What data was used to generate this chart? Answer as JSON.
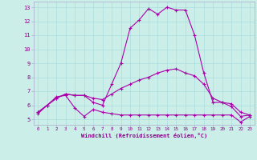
{
  "xlabel": "Windchill (Refroidissement éolien,°C)",
  "background_color": "#cceee8",
  "line_color": "#aa00aa",
  "grid_color": "#aadddd",
  "border_color": "#aaaacc",
  "xlim": [
    -0.5,
    23.5
  ],
  "ylim": [
    4.6,
    13.4
  ],
  "xticks": [
    0,
    1,
    2,
    3,
    4,
    5,
    6,
    7,
    8,
    9,
    10,
    11,
    12,
    13,
    14,
    15,
    16,
    17,
    18,
    19,
    20,
    21,
    22,
    23
  ],
  "yticks": [
    5,
    6,
    7,
    8,
    9,
    10,
    11,
    12,
    13
  ],
  "line1_x": [
    0,
    1,
    2,
    3,
    4,
    5,
    6,
    7,
    8,
    9,
    10,
    11,
    12,
    13,
    14,
    15,
    16,
    17,
    18,
    19,
    20,
    21,
    22,
    23
  ],
  "line1_y": [
    5.5,
    6.0,
    6.5,
    6.8,
    6.7,
    6.7,
    6.5,
    6.4,
    6.8,
    7.2,
    7.5,
    7.8,
    8.0,
    8.3,
    8.5,
    8.6,
    8.3,
    8.1,
    7.5,
    6.5,
    6.2,
    6.1,
    5.5,
    5.3
  ],
  "line2_x": [
    0,
    1,
    2,
    3,
    4,
    5,
    6,
    7,
    8,
    9,
    10,
    11,
    12,
    13,
    14,
    15,
    16,
    17,
    18,
    19,
    20,
    21,
    22,
    23
  ],
  "line2_y": [
    5.4,
    6.0,
    6.6,
    6.7,
    5.8,
    5.2,
    5.7,
    5.5,
    5.4,
    5.3,
    5.3,
    5.3,
    5.3,
    5.3,
    5.3,
    5.3,
    5.3,
    5.3,
    5.3,
    5.3,
    5.3,
    5.3,
    4.8,
    5.2
  ],
  "line3_x": [
    0,
    1,
    2,
    3,
    4,
    5,
    6,
    7,
    8,
    9,
    10,
    11,
    12,
    13,
    14,
    15,
    16,
    17,
    18,
    19,
    20,
    21,
    22,
    23
  ],
  "line3_y": [
    5.5,
    6.0,
    6.5,
    6.8,
    6.7,
    6.7,
    6.2,
    6.0,
    7.5,
    9.0,
    11.5,
    12.1,
    12.9,
    12.5,
    13.0,
    12.8,
    12.8,
    11.0,
    8.3,
    6.2,
    6.2,
    5.9,
    5.2,
    5.3
  ]
}
